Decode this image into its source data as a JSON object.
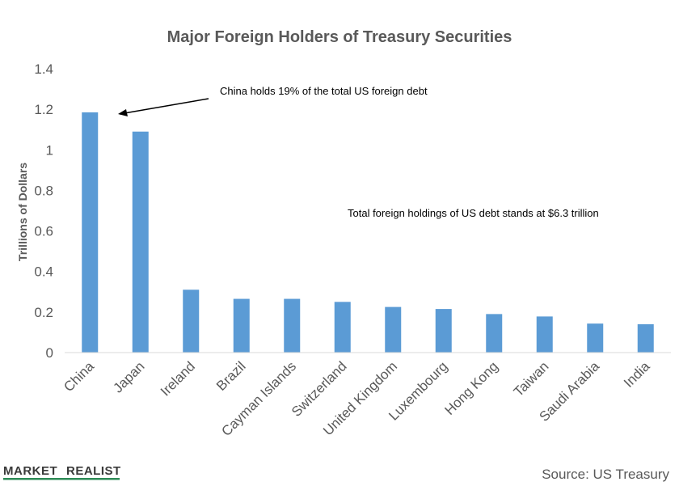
{
  "chart_data": {
    "type": "bar",
    "title": "Major Foreign Holders of Treasury Securities",
    "ylabel": "Trillions of Dollars",
    "xlabel": "",
    "ylim": [
      0,
      1.4
    ],
    "yticks": [
      0,
      0.2,
      0.4,
      0.6,
      0.8,
      1,
      1.2,
      1.4
    ],
    "yticks_labels": [
      "0",
      "0.2",
      "0.4",
      "0.6",
      "0.8",
      "1",
      "1.2",
      "1.4"
    ],
    "grid": false,
    "bar_color": "#5b9bd5",
    "categories": [
      "China",
      "Japan",
      "Ireland",
      "Brazil",
      "Cayman Islands",
      "Switzerland",
      "United Kingdom",
      "Luxembourg",
      "Hong Kong",
      "Taiwan",
      "Saudi Arabia",
      "India"
    ],
    "values": [
      1.185,
      1.09,
      0.31,
      0.265,
      0.265,
      0.25,
      0.225,
      0.215,
      0.19,
      0.178,
      0.143,
      0.14
    ],
    "annotations": [
      {
        "text": "China holds 19% of the total US foreign debt",
        "target_category": "China"
      },
      {
        "text": "Total foreign holdings of US debt stands at $6.3  trillion"
      }
    ]
  },
  "source": "Source: US Treasury",
  "brand": {
    "word1": "MARKET",
    "word2": "REALIST",
    "color": "#2e8b57"
  }
}
